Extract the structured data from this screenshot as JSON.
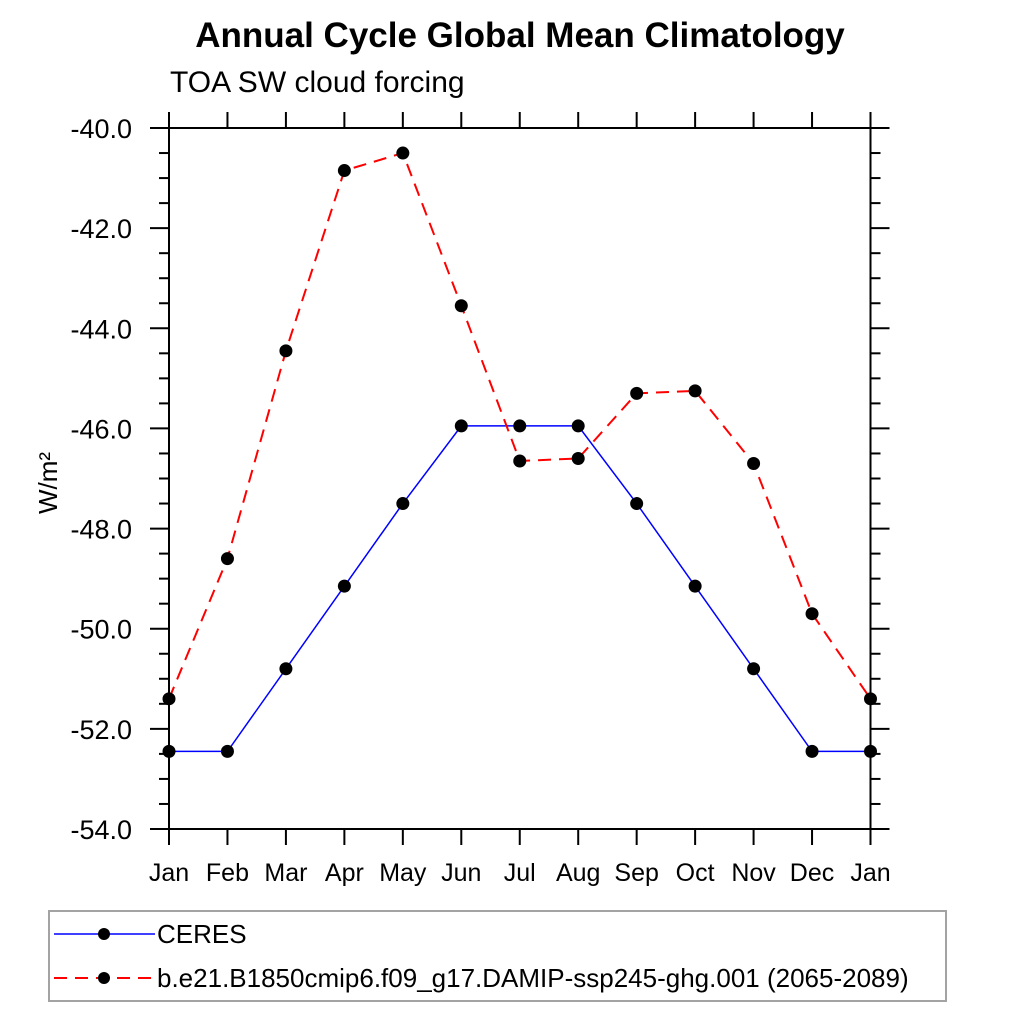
{
  "chart_data": {
    "type": "line",
    "title": "Annual Cycle Global Mean Climatology",
    "subtitle": "TOA SW cloud forcing",
    "ylabel": "W/m²",
    "xlabel": "",
    "categories": [
      "Jan",
      "Feb",
      "Mar",
      "Apr",
      "May",
      "Jun",
      "Jul",
      "Aug",
      "Sep",
      "Oct",
      "Nov",
      "Dec",
      "Jan"
    ],
    "ylim": [
      -54.0,
      -40.0
    ],
    "ytick_major_step": 2.0,
    "ytick_minor_step": 0.5,
    "ytick_labels": [
      "-40.0",
      "-42.0",
      "-44.0",
      "-46.0",
      "-48.0",
      "-50.0",
      "-52.0",
      "-54.0"
    ],
    "grid": false,
    "legend_position": "bottom-left-outside",
    "marker_shape": "filled-circle",
    "marker_color": "#000000",
    "axis_color": "#000000",
    "series": [
      {
        "name": "CERES",
        "color": "#0000ff",
        "line_style": "solid",
        "values": [
          -52.45,
          -52.45,
          -50.8,
          -49.15,
          -47.5,
          -45.95,
          -45.95,
          -45.95,
          -47.5,
          -49.15,
          -50.8,
          -52.45,
          -52.45
        ]
      },
      {
        "name": "b.e21.B1850cmip6.f09_g17.DAMIP-ssp245-ghg.001 (2065-2089)",
        "color": "#ff0000",
        "line_style": "dashed",
        "dash_pattern": "13,8",
        "values": [
          -51.4,
          -48.6,
          -44.45,
          -40.85,
          -40.5,
          -43.55,
          -46.65,
          -46.6,
          -45.3,
          -45.25,
          -46.7,
          -49.7,
          -51.4
        ]
      }
    ]
  }
}
